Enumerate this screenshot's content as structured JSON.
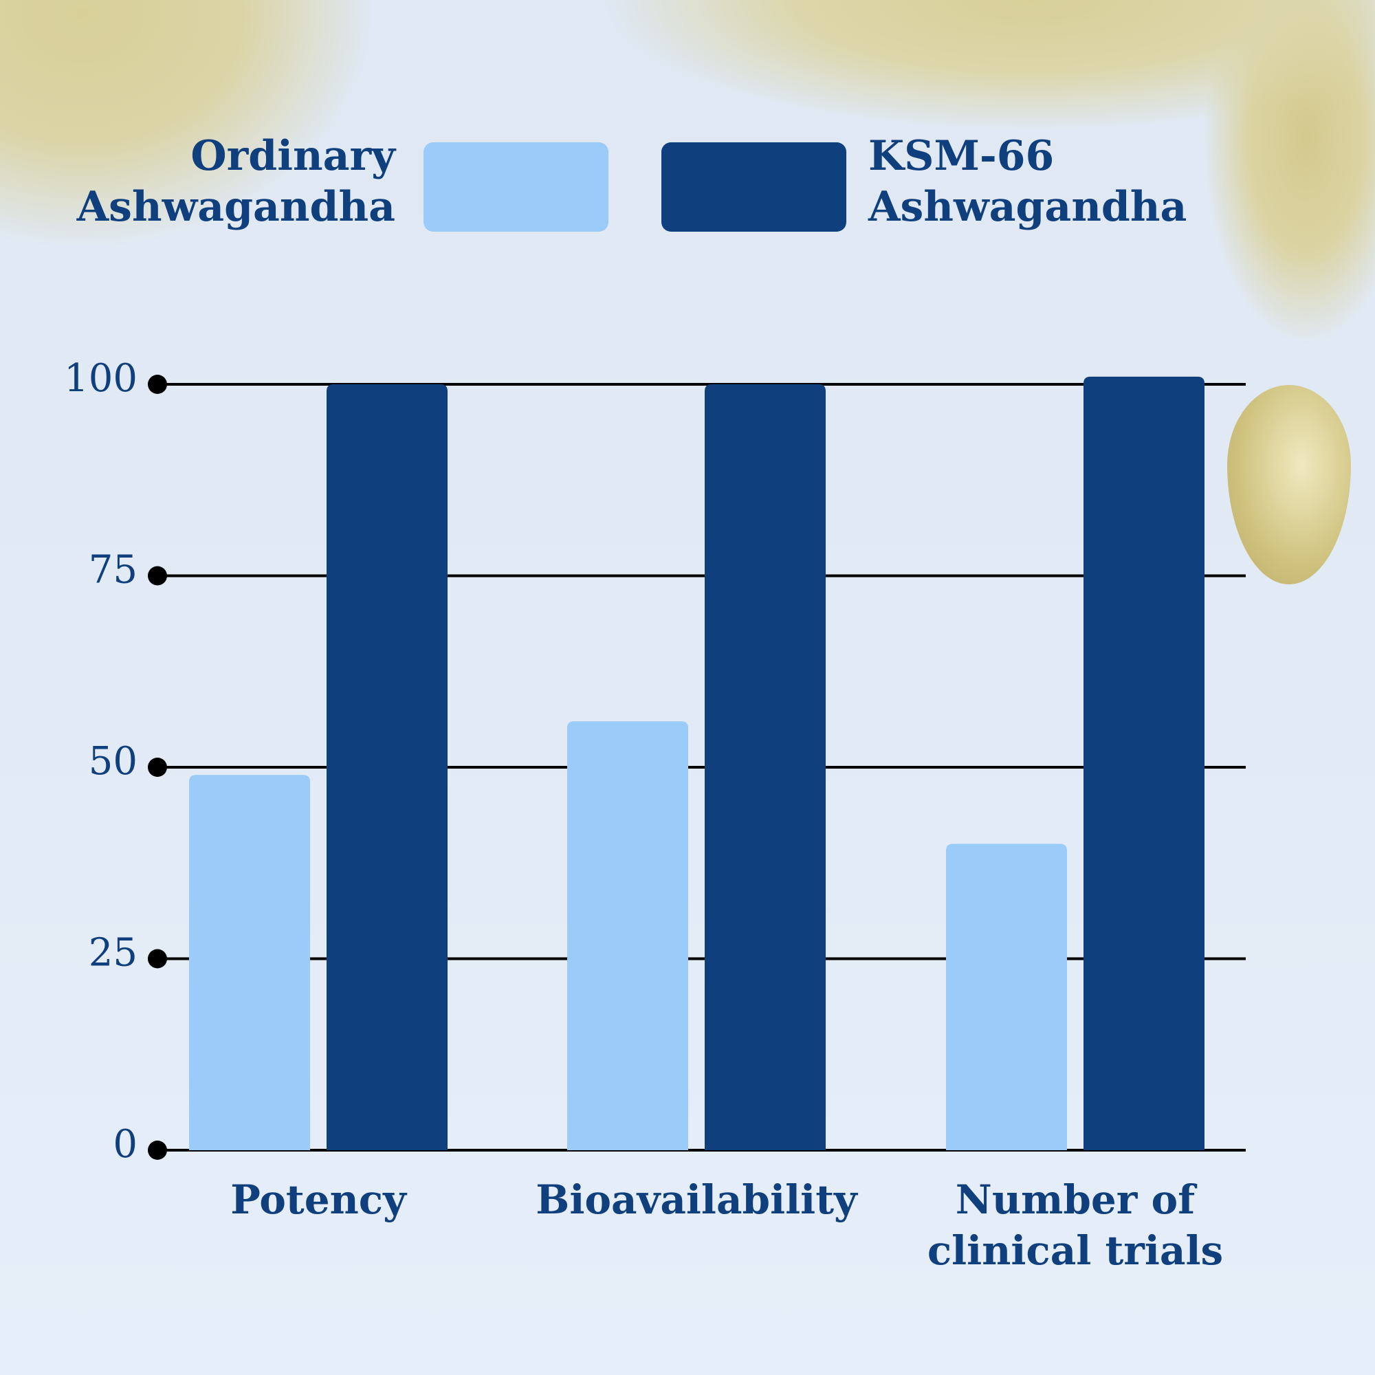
{
  "chart_data": {
    "type": "bar",
    "categories": [
      "Potency",
      "Bioavailability",
      "Number of clinical trials"
    ],
    "category_lines": [
      [
        "Potency"
      ],
      [
        "Bioavailability"
      ],
      [
        "Number of",
        "clinical trials"
      ]
    ],
    "series": [
      {
        "name": "Ordinary Ashwagandha",
        "name_lines": [
          "Ordinary",
          "Ashwagandha"
        ],
        "color": "#9bcbf8",
        "values": [
          49,
          56,
          40
        ]
      },
      {
        "name": "KSM-66 Ashwagandha",
        "name_lines": [
          "KSM-66",
          "Ashwagandha"
        ],
        "color": "#0f407d",
        "values": [
          100,
          100,
          101
        ]
      }
    ],
    "yticks": [
      0,
      25,
      50,
      75,
      100
    ],
    "ylim": [
      0,
      100
    ],
    "grid": true,
    "legend": "top",
    "xlabel": "",
    "ylabel": "",
    "title": ""
  }
}
